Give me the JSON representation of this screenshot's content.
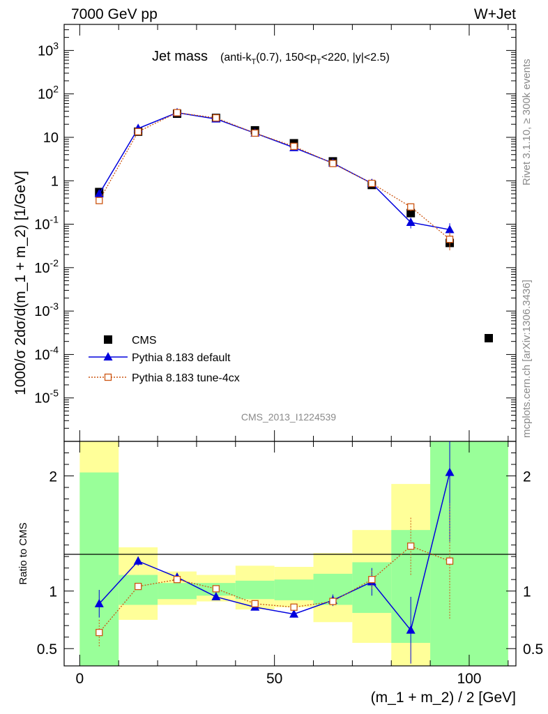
{
  "header": {
    "left": "7000 GeV pp",
    "right": "W+Jet"
  },
  "side_labels": {
    "rivet": "Rivet 3.1.10, ≥ 300k events",
    "mcplots": "mcplots.cern.ch [arXiv:1306.3436]"
  },
  "plot": {
    "title_main": "Jet mass",
    "title_detail": "(anti-k_T(0.7), 150<p_T<220, |y|<2.5)",
    "analysis_id": "CMS_2013_I1224539"
  },
  "chart_data": [
    {
      "type": "line",
      "scale": "log",
      "ylabel": "1000/σ 2dσ/d(m_1 + m_2) [1/GeV]",
      "xlabel": "(m_1 + m_2) / 2 [GeV]",
      "xlim": [
        -4,
        112
      ],
      "ylim_log10": [
        -6,
        3.6
      ],
      "y_tick_labels": [
        "10^-5",
        "10^-4",
        "10^-3",
        "10^-2",
        "10^-1",
        "1",
        "10",
        "10^2",
        "10^3"
      ],
      "x": [
        5,
        15,
        25,
        35,
        45,
        55,
        65,
        75,
        85,
        95
      ],
      "legend": [
        "CMS",
        "Pythia 8.183 default",
        "Pythia 8.183 tune-4cx"
      ],
      "series": [
        {
          "name": "CMS",
          "color": "#000000",
          "marker": "square",
          "values": [
            0.55,
            13.5,
            35,
            28,
            14.5,
            7.3,
            2.8,
            0.8,
            0.18,
            0.037
          ]
        },
        {
          "name": "Pythia 8.183 default",
          "color": "#0000dd",
          "marker": "triangle",
          "values": [
            0.5,
            16,
            37,
            26.5,
            12.5,
            5.8,
            2.55,
            0.87,
            0.11,
            0.075
          ],
          "err": [
            0.03,
            0.3,
            0.5,
            0.4,
            0.3,
            0.2,
            0.1,
            0.05,
            0.03,
            0.03
          ]
        },
        {
          "name": "Pythia 8.183 tune-4cx",
          "color": "#cc5511",
          "marker": "open-square",
          "values": [
            0.35,
            13.5,
            37,
            28,
            12.5,
            6.2,
            2.5,
            0.87,
            0.25,
            0.045
          ],
          "err": [
            0.03,
            0.3,
            0.5,
            0.4,
            0.3,
            0.2,
            0.1,
            0.05,
            0.05,
            0.02
          ]
        }
      ]
    },
    {
      "type": "line",
      "ylabel": "Ratio to CMS",
      "xlabel": "(m_1 + m_2) / 2 [GeV]",
      "xlim": [
        -4,
        112
      ],
      "ylim": [
        0.35,
        2.3
      ],
      "y_ticks": [
        0.5,
        1,
        2
      ],
      "x_ticks": [
        0,
        50,
        100
      ],
      "x": [
        5,
        15,
        25,
        35,
        45,
        55,
        65,
        75,
        85,
        95
      ],
      "bands": {
        "edges": [
          0,
          10,
          20,
          30,
          40,
          50,
          60,
          70,
          80,
          90,
          110
        ],
        "green_lo": [
          0.35,
          0.88,
          0.93,
          0.96,
          0.93,
          0.92,
          0.88,
          0.81,
          0.55,
          0.35
        ],
        "green_hi": [
          2.03,
          1.14,
          1.07,
          1.07,
          1.09,
          1.1,
          1.15,
          1.25,
          1.53,
          2.3
        ],
        "yellow_lo": [
          0.35,
          0.75,
          0.88,
          0.91,
          0.84,
          0.86,
          0.73,
          0.55,
          0.35,
          0.35
        ],
        "yellow_hi": [
          2.3,
          1.38,
          1.17,
          1.14,
          1.22,
          1.21,
          1.33,
          1.53,
          1.93,
          2.3
        ]
      },
      "series": [
        {
          "name": "Pythia 8.183 default",
          "color": "#0000dd",
          "marker": "triangle",
          "values": [
            0.89,
            1.26,
            1.12,
            0.95,
            0.86,
            0.8,
            0.92,
            1.08,
            0.66,
            2.03
          ],
          "err": [
            0.12,
            0.04,
            0.03,
            0.02,
            0.02,
            0.03,
            0.05,
            0.12,
            0.29,
            0.6
          ]
        },
        {
          "name": "Pythia 8.183 tune-4cx",
          "color": "#cc5511",
          "marker": "open-square",
          "values": [
            0.64,
            1.04,
            1.1,
            1.02,
            0.89,
            0.86,
            0.91,
            1.1,
            1.39,
            1.26
          ],
          "err": [
            0.12,
            0.02,
            0.02,
            0.02,
            0.02,
            0.02,
            0.03,
            0.08,
            0.25,
            0.5
          ]
        }
      ]
    }
  ]
}
